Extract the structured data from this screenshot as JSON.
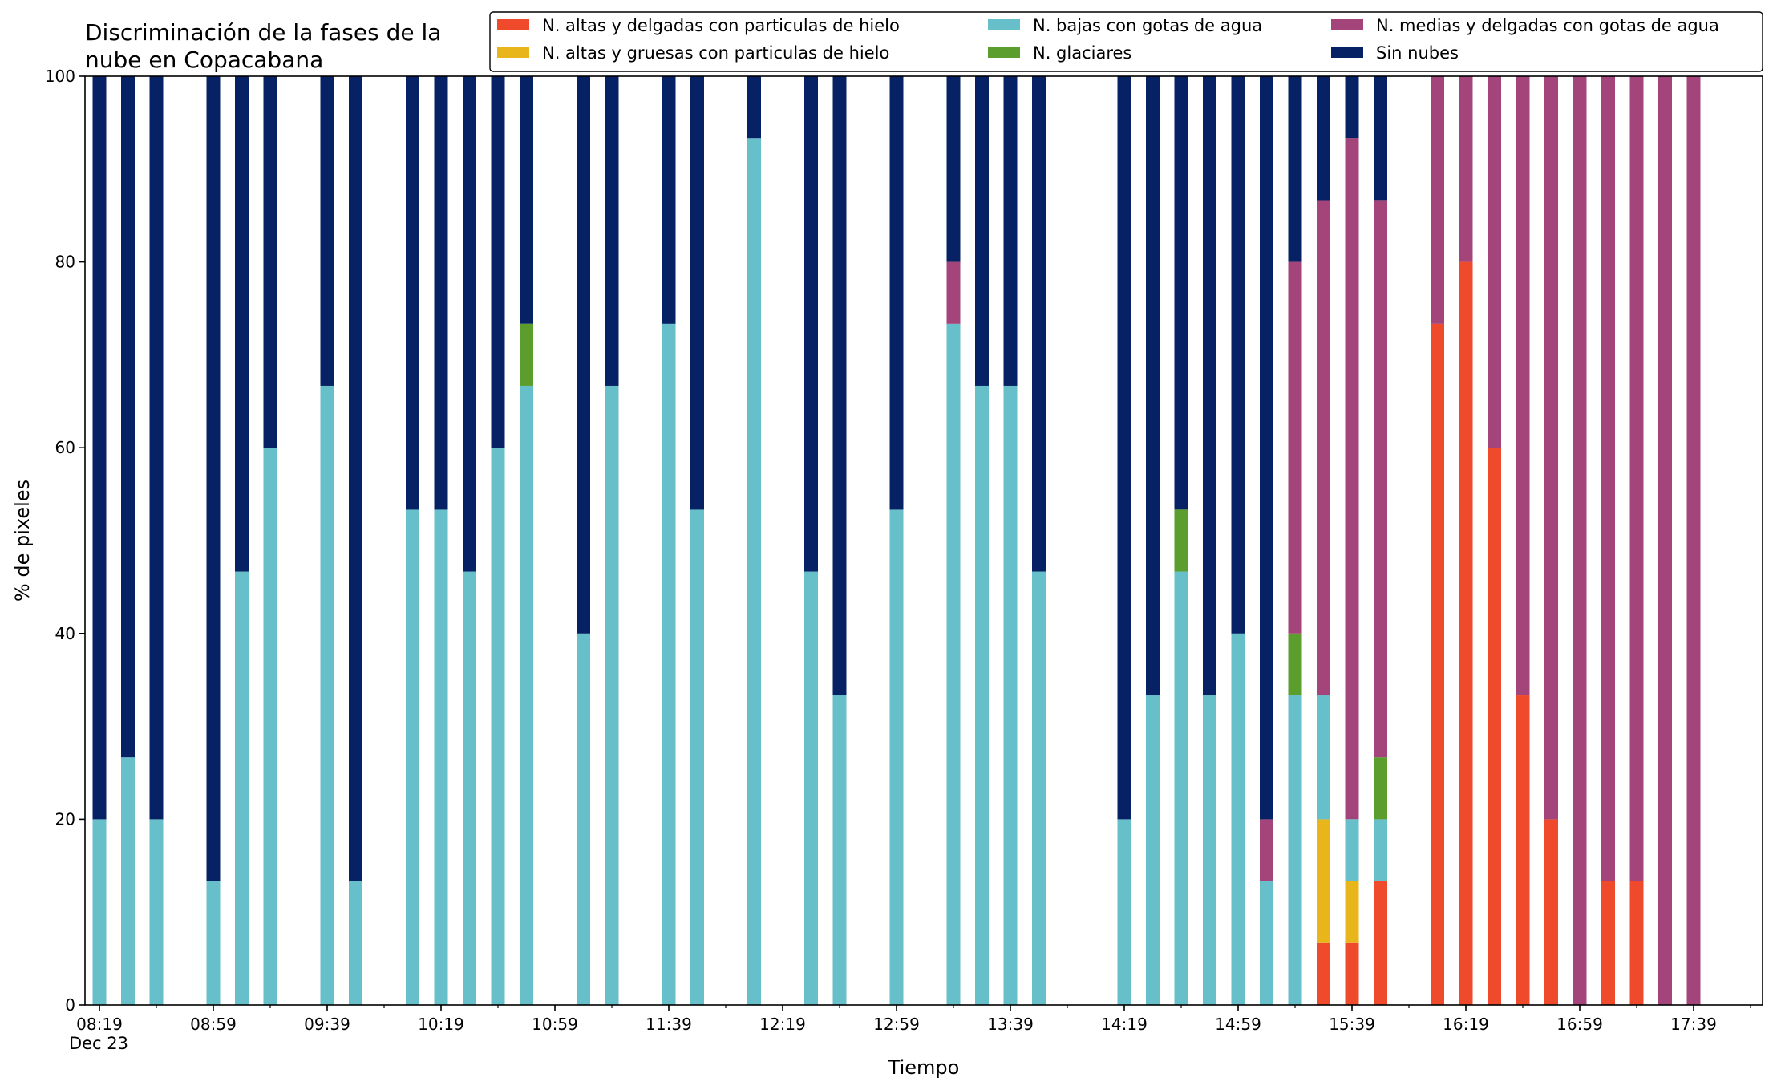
{
  "chart_data": {
    "type": "bar",
    "stacked": true,
    "title_lines": [
      "Discriminación de la fases de la",
      "nube en Copacabana"
    ],
    "xlabel": "Tiempo",
    "ylabel": "% de pixeles",
    "ylim": [
      0,
      100
    ],
    "y_ticks": [
      0,
      20,
      40,
      60,
      80,
      100
    ],
    "x_tick_labels": [
      "08:19",
      "08:59",
      "09:39",
      "10:19",
      "10:59",
      "11:39",
      "12:19",
      "12:59",
      "13:39",
      "14:19",
      "14:59",
      "15:39",
      "16:19",
      "16:59",
      "17:39"
    ],
    "x_date_label": "Dec 23",
    "grid": false,
    "legend_position": "top-right",
    "time_step_minutes": 10,
    "times": [
      "08:19",
      "08:29",
      "08:39",
      "08:59",
      "09:09",
      "09:19",
      "09:39",
      "09:49",
      "10:09",
      "10:19",
      "10:29",
      "10:39",
      "10:49",
      "11:09",
      "11:19",
      "11:39",
      "11:49",
      "12:09",
      "12:29",
      "12:39",
      "12:59",
      "13:19",
      "13:29",
      "13:39",
      "13:49",
      "14:19",
      "14:29",
      "14:39",
      "14:49",
      "14:59",
      "15:09",
      "15:19",
      "15:29",
      "15:39",
      "15:49",
      "16:09",
      "16:19",
      "16:29",
      "16:39",
      "16:49",
      "16:59",
      "17:09",
      "17:19",
      "17:29",
      "17:39"
    ],
    "series": [
      {
        "name": "N. altas y delgadas con particulas de hielo",
        "color": "#ef4a2c",
        "values": [
          0,
          0,
          0,
          0,
          0,
          0,
          0,
          0,
          0,
          0,
          0,
          0,
          0,
          0,
          0,
          0,
          0,
          0,
          0,
          0,
          0,
          0,
          0,
          0,
          0,
          0,
          0,
          0,
          0,
          0,
          0,
          0,
          6.67,
          6.67,
          13.33,
          73.33,
          80,
          60,
          33.33,
          20,
          0,
          13.33,
          13.33,
          0,
          0
        ]
      },
      {
        "name": "N. altas y gruesas con particulas de hielo",
        "color": "#e8b51b",
        "values": [
          0,
          0,
          0,
          0,
          0,
          0,
          0,
          0,
          0,
          0,
          0,
          0,
          0,
          0,
          0,
          0,
          0,
          0,
          0,
          0,
          0,
          0,
          0,
          0,
          0,
          0,
          0,
          0,
          0,
          0,
          0,
          0,
          13.33,
          6.67,
          0,
          0,
          0,
          0,
          0,
          0,
          0,
          0,
          0,
          0,
          0
        ]
      },
      {
        "name": "N. bajas con gotas de agua",
        "color": "#67bfca",
        "values": [
          20,
          26.67,
          20,
          13.33,
          46.67,
          60,
          66.67,
          13.33,
          53.33,
          53.33,
          46.67,
          60,
          66.67,
          40,
          66.67,
          73.33,
          53.33,
          93.33,
          46.67,
          33.33,
          53.33,
          73.33,
          66.67,
          66.67,
          46.67,
          20,
          33.33,
          46.67,
          33.33,
          40,
          13.33,
          33.33,
          13.33,
          6.67,
          6.67,
          0,
          0,
          0,
          0,
          0,
          0,
          0,
          0,
          0,
          0
        ]
      },
      {
        "name": "N. glaciares",
        "color": "#5b9e2e",
        "values": [
          0,
          0,
          0,
          0,
          0,
          0,
          0,
          0,
          0,
          0,
          0,
          0,
          6.67,
          0,
          0,
          0,
          0,
          0,
          0,
          0,
          0,
          0,
          0,
          0,
          0,
          0,
          0,
          6.67,
          0,
          0,
          0,
          6.67,
          0,
          0,
          6.67,
          0,
          0,
          0,
          0,
          0,
          0,
          0,
          0,
          0,
          0
        ]
      },
      {
        "name": "N. medias y delgadas con gotas de agua",
        "color": "#a3447a",
        "values": [
          0,
          0,
          0,
          0,
          0,
          0,
          0,
          0,
          0,
          0,
          0,
          0,
          0,
          0,
          0,
          0,
          0,
          0,
          0,
          0,
          0,
          6.67,
          0,
          0,
          0,
          0,
          0,
          0,
          0,
          0,
          6.67,
          40,
          53.33,
          73.33,
          60,
          26.67,
          20,
          40,
          66.67,
          80,
          100,
          86.67,
          86.67,
          100,
          100
        ]
      },
      {
        "name": "Sin nubes",
        "color": "#062264",
        "values": [
          80,
          73.33,
          80,
          86.67,
          53.33,
          40,
          33.33,
          86.67,
          46.67,
          46.67,
          53.33,
          40,
          26.67,
          60,
          33.33,
          26.67,
          46.67,
          6.67,
          53.33,
          66.67,
          46.67,
          20,
          33.33,
          33.33,
          53.33,
          80,
          66.67,
          46.67,
          66.67,
          60,
          80,
          20,
          13.33,
          6.67,
          13.33,
          0,
          0,
          0,
          0,
          0,
          0,
          0,
          0,
          0,
          0
        ]
      }
    ]
  },
  "colors": {
    "axis": "#000000",
    "background": "#ffffff",
    "legend_border": "#000000"
  }
}
